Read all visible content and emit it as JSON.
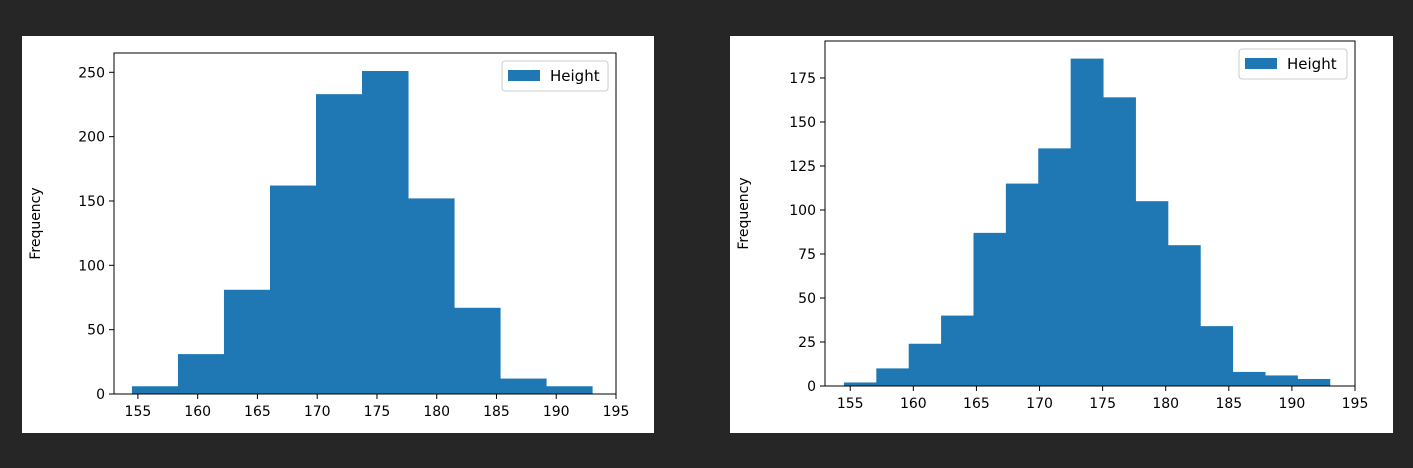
{
  "colors": {
    "background": "#262626",
    "panel": "#ffffff",
    "bar": "#1f77b4"
  },
  "chart_data": [
    {
      "type": "bar",
      "subtype": "histogram",
      "title": "",
      "xlabel": "",
      "ylabel": "Frequency",
      "xlim": [
        153,
        195
      ],
      "ylim": [
        0,
        265
      ],
      "xticks": [
        155,
        160,
        165,
        170,
        175,
        180,
        185,
        190,
        195
      ],
      "yticks": [
        0,
        50,
        100,
        150,
        200,
        250
      ],
      "legend": {
        "position": "top-right",
        "entries": [
          "Height"
        ]
      },
      "grid": false,
      "series": [
        {
          "name": "Height",
          "bin_edges": [
            154.5,
            158.35,
            162.2,
            166.05,
            169.9,
            173.75,
            177.6,
            181.45,
            185.3,
            189.15,
            193.0
          ],
          "values": [
            6,
            31,
            81,
            162,
            233,
            251,
            152,
            67,
            12,
            6
          ]
        }
      ]
    },
    {
      "type": "bar",
      "subtype": "histogram",
      "title": "",
      "xlabel": "",
      "ylabel": "Frequency",
      "xlim": [
        153,
        195
      ],
      "ylim": [
        0,
        196
      ],
      "xticks": [
        155,
        160,
        165,
        170,
        175,
        180,
        185,
        190,
        195
      ],
      "yticks": [
        0,
        25,
        50,
        75,
        100,
        125,
        150,
        175
      ],
      "legend": {
        "position": "top-right",
        "entries": [
          "Height"
        ]
      },
      "grid": false,
      "series": [
        {
          "name": "Height",
          "bin_edges": [
            154.5,
            157.0667,
            159.6333,
            162.2,
            164.7667,
            167.3333,
            169.9,
            172.4667,
            175.0333,
            177.6,
            180.1667,
            182.7333,
            185.3,
            187.8667,
            190.4333,
            193.0
          ],
          "values": [
            2,
            10,
            24,
            40,
            87,
            115,
            135,
            186,
            164,
            105,
            80,
            34,
            8,
            6,
            4
          ]
        }
      ]
    }
  ]
}
